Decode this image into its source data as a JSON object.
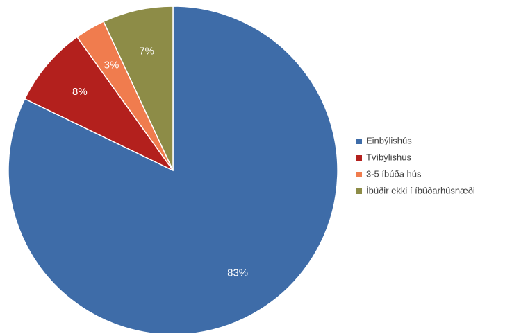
{
  "chart_data": {
    "type": "pie",
    "title": "",
    "start": "top",
    "direction": "clockwise",
    "slices": [
      {
        "label": "Einbýlishús",
        "value": 83,
        "display": "83%",
        "color": "#3e6ca8"
      },
      {
        "label": "Tvíbýlishús",
        "value": 8,
        "display": "8%",
        "color": "#b3201d"
      },
      {
        "label": "3-5 íbúða hús",
        "value": 3,
        "display": "3%",
        "color": "#f07c4e"
      },
      {
        "label": "Íbúðir ekki í íbúðarhúsnæði",
        "value": 7,
        "display": "7%",
        "color": "#8d8c47"
      }
    ],
    "legend_position": "right"
  }
}
